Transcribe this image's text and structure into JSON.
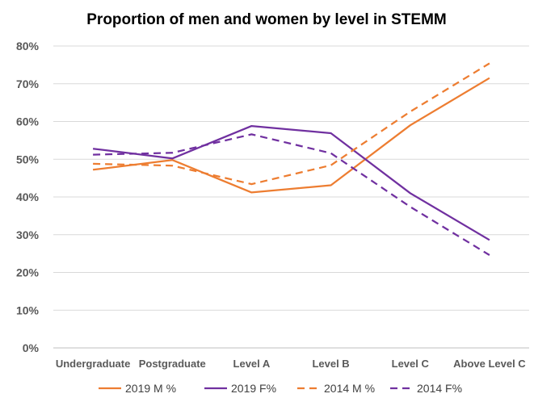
{
  "chart_data": {
    "type": "line",
    "title": "Proportion of men and women by level in STEMM",
    "xlabel": "",
    "ylabel": "",
    "categories": [
      "Undergraduate",
      "Postgraduate",
      "Level A",
      "Level B",
      "Level C",
      "Above Level C"
    ],
    "ylim": [
      0,
      80
    ],
    "yticks": [
      0,
      10,
      20,
      30,
      40,
      50,
      60,
      70,
      80
    ],
    "ytick_labels": [
      "0%",
      "10%",
      "20%",
      "30%",
      "40%",
      "50%",
      "60%",
      "70%",
      "80%"
    ],
    "grid": true,
    "legend_position": "bottom",
    "series": [
      {
        "name": "2019 M %",
        "values": [
          47.2,
          49.8,
          41.2,
          43.1,
          59.0,
          71.5
        ],
        "color": "#ED7D31",
        "dashed": false
      },
      {
        "name": "2019 F%",
        "values": [
          52.8,
          50.2,
          58.8,
          56.9,
          41.0,
          28.6
        ],
        "color": "#7030A0",
        "dashed": false
      },
      {
        "name": "2014 M %",
        "values": [
          48.8,
          48.3,
          43.4,
          48.4,
          62.6,
          75.4
        ],
        "color": "#ED7D31",
        "dashed": true
      },
      {
        "name": "2014 F%",
        "values": [
          51.2,
          51.7,
          56.6,
          51.6,
          37.4,
          24.6
        ],
        "color": "#7030A0",
        "dashed": true
      }
    ]
  }
}
